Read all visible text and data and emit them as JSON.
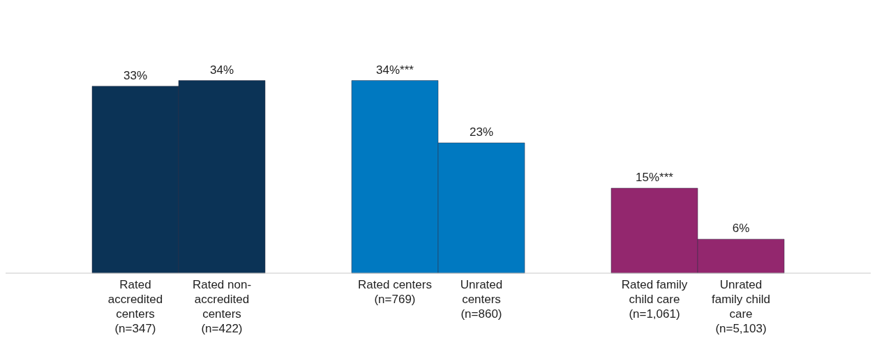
{
  "chart_data": {
    "type": "bar",
    "categories": [
      "Rated accredited centers (n=347)",
      "Rated non-accredited centers (n=422)",
      null,
      "Rated centers (n=769)",
      "Unrated centers (n=860)",
      null,
      "Rated family child care (n=1,061)",
      "Unrated family child care (n=5,103)"
    ],
    "values": [
      33,
      34,
      null,
      34,
      23,
      null,
      15,
      6
    ],
    "value_labels": [
      "33%",
      "34%",
      null,
      "34%***",
      "23%",
      null,
      "15%***",
      "6%"
    ],
    "colors": [
      "#0b3356",
      "#0b3356",
      null,
      "#0079c1",
      "#0079c1",
      null,
      "#93276e",
      "#93276e"
    ],
    "data_labels": false
  }
}
